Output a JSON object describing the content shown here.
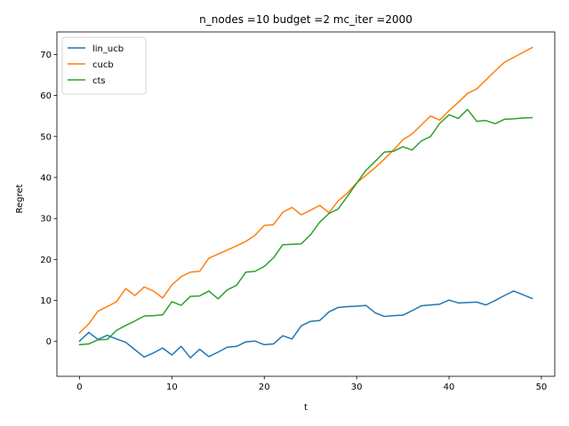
{
  "chart_data": {
    "type": "line",
    "title": "n_nodes =10 budget =2 mc_iter =2000",
    "xlabel": "t",
    "ylabel": "Regret",
    "xlim": [
      -2.45,
      51.45
    ],
    "ylim": [
      -8.5,
      75.5
    ],
    "xticks": [
      0,
      10,
      20,
      30,
      40,
      50
    ],
    "yticks": [
      0,
      10,
      20,
      30,
      40,
      50,
      60,
      70
    ],
    "grid": false,
    "legend_position": "upper-left",
    "x": [
      0,
      1,
      2,
      3,
      4,
      5,
      6,
      7,
      8,
      9,
      10,
      11,
      12,
      13,
      14,
      15,
      16,
      17,
      18,
      19,
      20,
      21,
      22,
      23,
      24,
      25,
      26,
      27,
      28,
      29,
      30,
      31,
      32,
      33,
      34,
      35,
      36,
      37,
      38,
      39,
      40,
      41,
      42,
      43,
      44,
      45,
      46,
      47,
      48,
      49
    ],
    "series": [
      {
        "name": "lin_ucb",
        "color": "#1f77b4",
        "values": [
          0.1,
          2.2,
          0.5,
          1.5,
          0.6,
          -0.2,
          -2.0,
          -3.8,
          -2.8,
          -1.6,
          -3.3,
          -1.2,
          -4.0,
          -1.9,
          -3.7,
          -2.6,
          -1.4,
          -1.2,
          -0.1,
          0.1,
          -0.8,
          -0.6,
          1.4,
          0.6,
          3.8,
          4.9,
          5.1,
          7.2,
          8.3,
          8.5,
          8.6,
          8.8,
          7.0,
          6.1,
          6.3,
          6.4,
          7.5,
          8.7,
          8.9,
          9.1,
          10.1,
          9.4,
          9.5,
          9.6,
          8.9,
          10.0,
          11.2,
          12.3,
          11.4,
          10.5
        ]
      },
      {
        "name": "cucb",
        "color": "#ff7f0e",
        "values": [
          2.1,
          4.3,
          7.4,
          8.5,
          9.7,
          12.9,
          11.2,
          13.3,
          12.3,
          10.6,
          13.8,
          15.8,
          16.9,
          17.1,
          20.3,
          21.3,
          22.3,
          23.3,
          24.4,
          25.9,
          28.3,
          28.5,
          31.5,
          32.7,
          30.9,
          32.0,
          33.2,
          31.4,
          34.3,
          36.2,
          38.7,
          40.5,
          42.4,
          44.5,
          46.7,
          49.2,
          50.6,
          52.8,
          55.0,
          54.0,
          56.3,
          58.3,
          60.5,
          61.6,
          63.8,
          66.0,
          68.1,
          69.3,
          70.5,
          71.7
        ]
      },
      {
        "name": "cts",
        "color": "#2ca02c",
        "values": [
          -0.8,
          -0.6,
          0.4,
          0.5,
          2.7,
          3.9,
          5.0,
          6.2,
          6.3,
          6.5,
          9.7,
          8.8,
          11.0,
          11.1,
          12.3,
          10.4,
          12.6,
          13.7,
          16.9,
          17.1,
          18.3,
          20.4,
          23.6,
          23.7,
          23.8,
          26.0,
          29.1,
          31.2,
          32.3,
          35.4,
          38.6,
          41.7,
          43.9,
          46.2,
          46.4,
          47.5,
          46.7,
          48.9,
          50.0,
          53.2,
          55.3,
          54.4,
          56.6,
          53.7,
          53.9,
          53.1,
          54.2,
          54.3,
          54.5,
          54.6
        ]
      }
    ]
  }
}
